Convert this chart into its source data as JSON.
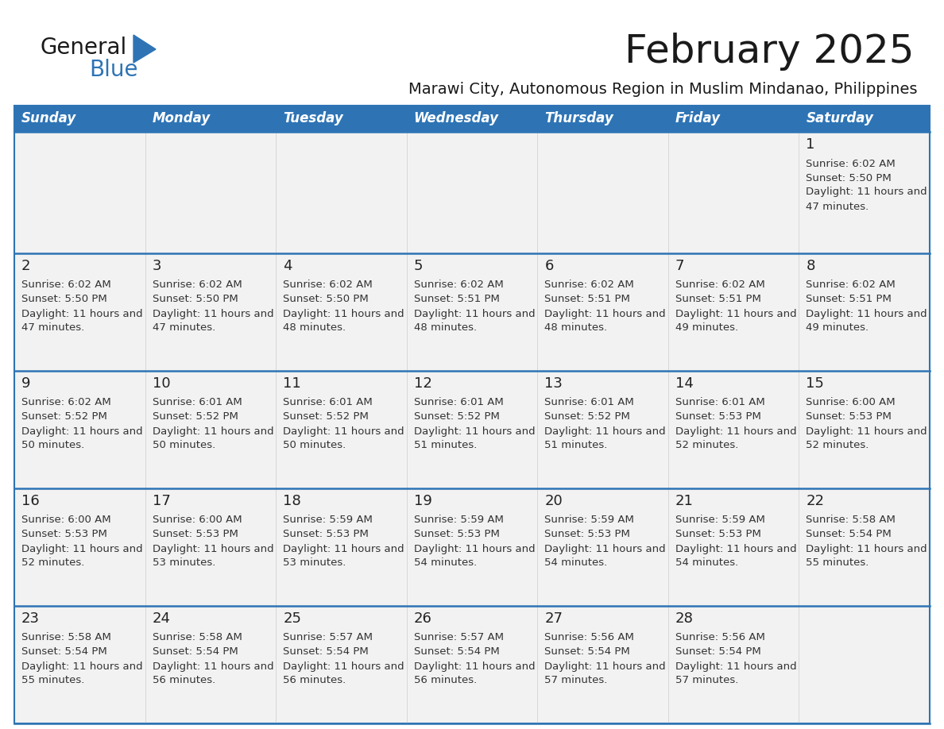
{
  "title": "February 2025",
  "subtitle": "Marawi City, Autonomous Region in Muslim Mindanao, Philippines",
  "days_of_week": [
    "Sunday",
    "Monday",
    "Tuesday",
    "Wednesday",
    "Thursday",
    "Friday",
    "Saturday"
  ],
  "header_bg": "#2E74B5",
  "header_text": "#FFFFFF",
  "row_bg_light": "#F2F2F2",
  "row_bg_white": "#FFFFFF",
  "cell_text": "#333333",
  "border_color": "#2E74B5",
  "separator_color": "#AAAAAA",
  "calendar_data": [
    [
      null,
      null,
      null,
      null,
      null,
      null,
      {
        "day": 1,
        "sunrise": "6:02 AM",
        "sunset": "5:50 PM",
        "daylight_h": "11 hours",
        "daylight_m": "47 minutes."
      }
    ],
    [
      {
        "day": 2,
        "sunrise": "6:02 AM",
        "sunset": "5:50 PM",
        "daylight_h": "11 hours",
        "daylight_m": "47 minutes."
      },
      {
        "day": 3,
        "sunrise": "6:02 AM",
        "sunset": "5:50 PM",
        "daylight_h": "11 hours",
        "daylight_m": "47 minutes."
      },
      {
        "day": 4,
        "sunrise": "6:02 AM",
        "sunset": "5:50 PM",
        "daylight_h": "11 hours",
        "daylight_m": "48 minutes."
      },
      {
        "day": 5,
        "sunrise": "6:02 AM",
        "sunset": "5:51 PM",
        "daylight_h": "11 hours",
        "daylight_m": "48 minutes."
      },
      {
        "day": 6,
        "sunrise": "6:02 AM",
        "sunset": "5:51 PM",
        "daylight_h": "11 hours",
        "daylight_m": "48 minutes."
      },
      {
        "day": 7,
        "sunrise": "6:02 AM",
        "sunset": "5:51 PM",
        "daylight_h": "11 hours",
        "daylight_m": "49 minutes."
      },
      {
        "day": 8,
        "sunrise": "6:02 AM",
        "sunset": "5:51 PM",
        "daylight_h": "11 hours",
        "daylight_m": "49 minutes."
      }
    ],
    [
      {
        "day": 9,
        "sunrise": "6:02 AM",
        "sunset": "5:52 PM",
        "daylight_h": "11 hours",
        "daylight_m": "50 minutes."
      },
      {
        "day": 10,
        "sunrise": "6:01 AM",
        "sunset": "5:52 PM",
        "daylight_h": "11 hours",
        "daylight_m": "50 minutes."
      },
      {
        "day": 11,
        "sunrise": "6:01 AM",
        "sunset": "5:52 PM",
        "daylight_h": "11 hours",
        "daylight_m": "50 minutes."
      },
      {
        "day": 12,
        "sunrise": "6:01 AM",
        "sunset": "5:52 PM",
        "daylight_h": "11 hours",
        "daylight_m": "51 minutes."
      },
      {
        "day": 13,
        "sunrise": "6:01 AM",
        "sunset": "5:52 PM",
        "daylight_h": "11 hours",
        "daylight_m": "51 minutes."
      },
      {
        "day": 14,
        "sunrise": "6:01 AM",
        "sunset": "5:53 PM",
        "daylight_h": "11 hours",
        "daylight_m": "52 minutes."
      },
      {
        "day": 15,
        "sunrise": "6:00 AM",
        "sunset": "5:53 PM",
        "daylight_h": "11 hours",
        "daylight_m": "52 minutes."
      }
    ],
    [
      {
        "day": 16,
        "sunrise": "6:00 AM",
        "sunset": "5:53 PM",
        "daylight_h": "11 hours",
        "daylight_m": "52 minutes."
      },
      {
        "day": 17,
        "sunrise": "6:00 AM",
        "sunset": "5:53 PM",
        "daylight_h": "11 hours",
        "daylight_m": "53 minutes."
      },
      {
        "day": 18,
        "sunrise": "5:59 AM",
        "sunset": "5:53 PM",
        "daylight_h": "11 hours",
        "daylight_m": "53 minutes."
      },
      {
        "day": 19,
        "sunrise": "5:59 AM",
        "sunset": "5:53 PM",
        "daylight_h": "11 hours",
        "daylight_m": "54 minutes."
      },
      {
        "day": 20,
        "sunrise": "5:59 AM",
        "sunset": "5:53 PM",
        "daylight_h": "11 hours",
        "daylight_m": "54 minutes."
      },
      {
        "day": 21,
        "sunrise": "5:59 AM",
        "sunset": "5:53 PM",
        "daylight_h": "11 hours",
        "daylight_m": "54 minutes."
      },
      {
        "day": 22,
        "sunrise": "5:58 AM",
        "sunset": "5:54 PM",
        "daylight_h": "11 hours",
        "daylight_m": "55 minutes."
      }
    ],
    [
      {
        "day": 23,
        "sunrise": "5:58 AM",
        "sunset": "5:54 PM",
        "daylight_h": "11 hours",
        "daylight_m": "55 minutes."
      },
      {
        "day": 24,
        "sunrise": "5:58 AM",
        "sunset": "5:54 PM",
        "daylight_h": "11 hours",
        "daylight_m": "56 minutes."
      },
      {
        "day": 25,
        "sunrise": "5:57 AM",
        "sunset": "5:54 PM",
        "daylight_h": "11 hours",
        "daylight_m": "56 minutes."
      },
      {
        "day": 26,
        "sunrise": "5:57 AM",
        "sunset": "5:54 PM",
        "daylight_h": "11 hours",
        "daylight_m": "56 minutes."
      },
      {
        "day": 27,
        "sunrise": "5:56 AM",
        "sunset": "5:54 PM",
        "daylight_h": "11 hours",
        "daylight_m": "57 minutes."
      },
      {
        "day": 28,
        "sunrise": "5:56 AM",
        "sunset": "5:54 PM",
        "daylight_h": "11 hours",
        "daylight_m": "57 minutes."
      },
      null
    ]
  ]
}
